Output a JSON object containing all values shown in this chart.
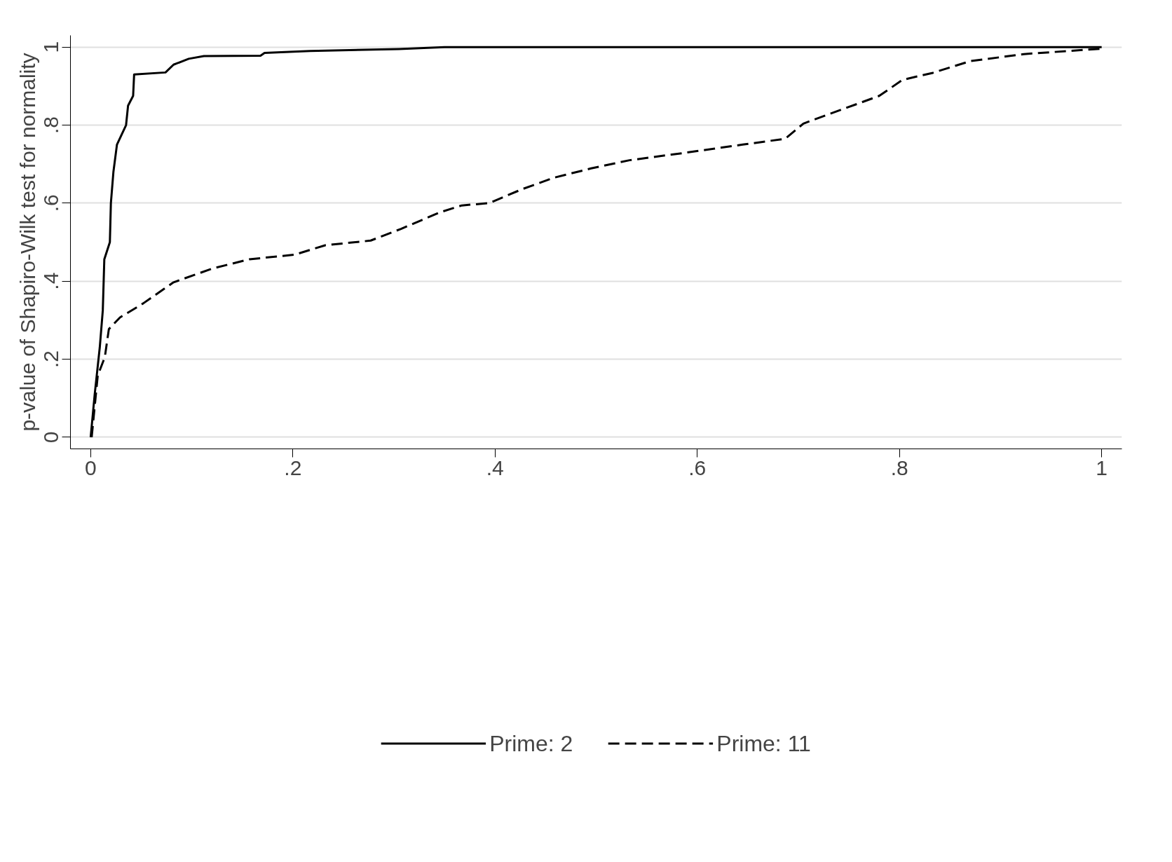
{
  "chart_data": {
    "type": "line",
    "ylabel": "p-value of Shapiro-Wilk test for normality",
    "xlim": [
      -0.02,
      1.02
    ],
    "ylim": [
      -0.03,
      1.03
    ],
    "xticks": [
      0,
      {
        "value": 0.2,
        "label": ".2"
      },
      {
        "value": 0.4,
        "label": ".4"
      },
      {
        "value": 0.6,
        "label": ".6"
      },
      {
        "value": 0.8,
        "label": ".8"
      },
      1
    ],
    "yticks": [
      0,
      {
        "value": 0.2,
        "label": ".2"
      },
      {
        "value": 0.4,
        "label": ".4"
      },
      {
        "value": 0.6,
        "label": ".6"
      },
      {
        "value": 0.8,
        "label": ".8"
      },
      1
    ],
    "grid": "y",
    "legend": "bottom",
    "series": [
      {
        "name": "Prime: 2",
        "color": "#000000",
        "line_style": "solid",
        "x": [
          0,
          0.004,
          0.009,
          0.012,
          0.0135,
          0.019,
          0.02,
          0.0225,
          0.026,
          0.035,
          0.037,
          0.042,
          0.043,
          0.074,
          0.082,
          0.097,
          0.112,
          0.168,
          0.172,
          0.217,
          0.305,
          0.35,
          1
        ],
        "values": [
          0,
          0.11,
          0.23,
          0.325,
          0.456,
          0.5,
          0.6,
          0.68,
          0.75,
          0.8,
          0.85,
          0.875,
          0.93,
          0.935,
          0.955,
          0.97,
          0.977,
          0.978,
          0.985,
          0.99,
          0.995,
          1,
          1
        ]
      },
      {
        "name": "Prime: 11",
        "color": "#000000",
        "line_style": "dashed",
        "x": [
          0.001,
          0.007,
          0.014,
          0.018,
          0.029,
          0.052,
          0.082,
          0.12,
          0.157,
          0.202,
          0.232,
          0.277,
          0.307,
          0.345,
          0.367,
          0.394,
          0.427,
          0.458,
          0.495,
          0.533,
          0.585,
          0.645,
          0.687,
          0.705,
          0.743,
          0.78,
          0.803,
          0.833,
          0.87,
          0.923,
          1
        ],
        "values": [
          0,
          0.158,
          0.205,
          0.277,
          0.307,
          0.343,
          0.397,
          0.432,
          0.456,
          0.468,
          0.492,
          0.504,
          0.534,
          0.576,
          0.594,
          0.6,
          0.636,
          0.665,
          0.689,
          0.71,
          0.728,
          0.75,
          0.765,
          0.804,
          0.84,
          0.875,
          0.916,
          0.934,
          0.964,
          0.982,
          0.996
        ]
      }
    ]
  }
}
